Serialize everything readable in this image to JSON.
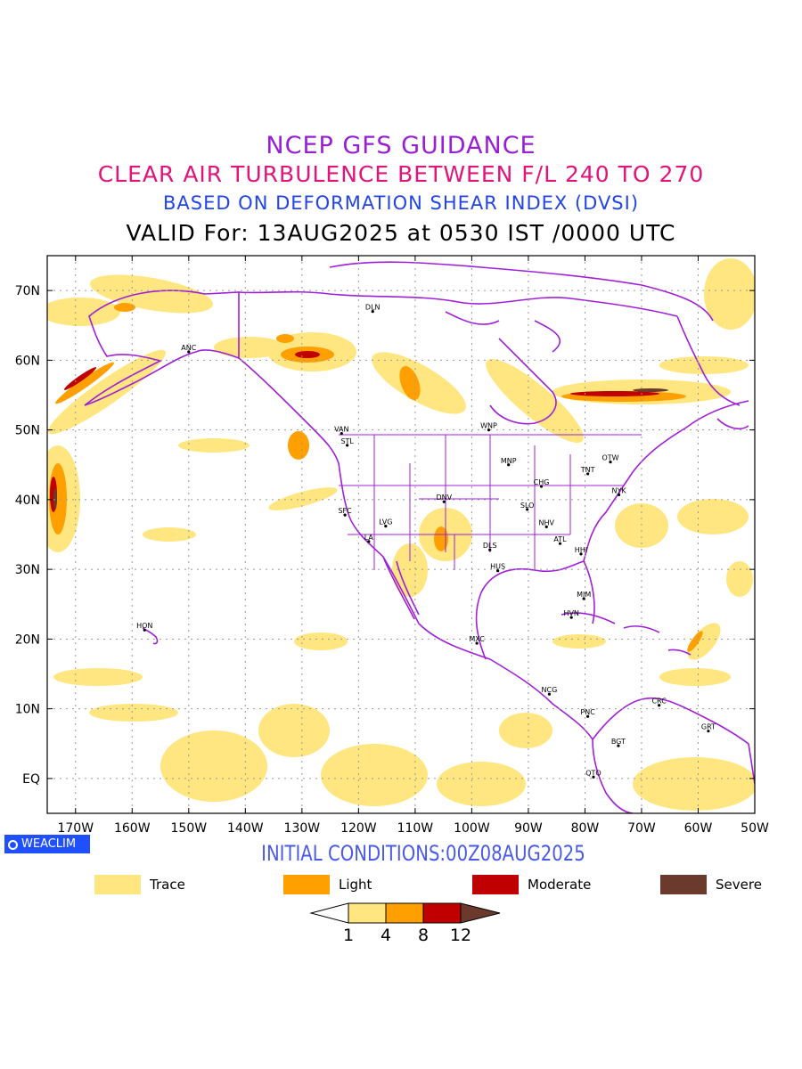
{
  "titles": {
    "line1": "NCEP GFS GUIDANCE",
    "line2": "CLEAR AIR TURBULENCE BETWEEN F/L 240 TO 270",
    "line3": "BASED ON DEFORMATION SHEAR INDEX (DVSI)",
    "line4": "VALID For: 13AUG2025 at 0530 IST /0000 UTC"
  },
  "map": {
    "lon_range": [
      -175,
      -50
    ],
    "lat_range": [
      -5,
      75
    ],
    "lat_ticks": [
      {
        "value": 70,
        "label": "70N"
      },
      {
        "value": 60,
        "label": "60N"
      },
      {
        "value": 50,
        "label": "50N"
      },
      {
        "value": 40,
        "label": "40N"
      },
      {
        "value": 30,
        "label": "30N"
      },
      {
        "value": 20,
        "label": "20N"
      },
      {
        "value": 10,
        "label": "10N"
      },
      {
        "value": 0,
        "label": "EQ"
      }
    ],
    "lon_ticks": [
      {
        "value": -170,
        "label": "170W"
      },
      {
        "value": -160,
        "label": "160W"
      },
      {
        "value": -150,
        "label": "150W"
      },
      {
        "value": -140,
        "label": "140W"
      },
      {
        "value": -130,
        "label": "130W"
      },
      {
        "value": -120,
        "label": "120W"
      },
      {
        "value": -110,
        "label": "110W"
      },
      {
        "value": -100,
        "label": "100W"
      },
      {
        "value": -90,
        "label": "90W"
      },
      {
        "value": -80,
        "label": "80W"
      },
      {
        "value": -70,
        "label": "70W"
      },
      {
        "value": -60,
        "label": "60W"
      },
      {
        "value": -50,
        "label": "50W"
      }
    ],
    "stations": [
      {
        "code": "DLN",
        "lon": -117.5,
        "lat": 67.0
      },
      {
        "code": "ANC",
        "lon": -150.0,
        "lat": 61.2
      },
      {
        "code": "VAN",
        "lon": -123.0,
        "lat": 49.5
      },
      {
        "code": "STL",
        "lon": -122.0,
        "lat": 47.8
      },
      {
        "code": "WNP",
        "lon": -97.0,
        "lat": 50.0
      },
      {
        "code": "MNP",
        "lon": -93.5,
        "lat": 45.0
      },
      {
        "code": "TNT",
        "lon": -79.5,
        "lat": 43.7
      },
      {
        "code": "OTW",
        "lon": -75.5,
        "lat": 45.4
      },
      {
        "code": "CHG",
        "lon": -87.7,
        "lat": 41.9
      },
      {
        "code": "NYK",
        "lon": -74.0,
        "lat": 40.7
      },
      {
        "code": "DNV",
        "lon": -104.9,
        "lat": 39.7
      },
      {
        "code": "SFC",
        "lon": -122.4,
        "lat": 37.8
      },
      {
        "code": "SLO",
        "lon": -90.2,
        "lat": 38.6
      },
      {
        "code": "LVG",
        "lon": -115.2,
        "lat": 36.2
      },
      {
        "code": "NHV",
        "lon": -86.8,
        "lat": 36.1
      },
      {
        "code": "LA",
        "lon": -118.2,
        "lat": 34.0
      },
      {
        "code": "DLS",
        "lon": -96.8,
        "lat": 32.8
      },
      {
        "code": "ATL",
        "lon": -84.4,
        "lat": 33.7
      },
      {
        "code": "HHI",
        "lon": -80.7,
        "lat": 32.2
      },
      {
        "code": "HUS",
        "lon": -95.4,
        "lat": 29.8
      },
      {
        "code": "MIM",
        "lon": -80.2,
        "lat": 25.8
      },
      {
        "code": "HVN",
        "lon": -82.4,
        "lat": 23.1
      },
      {
        "code": "HON",
        "lon": -157.8,
        "lat": 21.3
      },
      {
        "code": "MXC",
        "lon": -99.1,
        "lat": 19.4
      },
      {
        "code": "NCG",
        "lon": -86.3,
        "lat": 12.1
      },
      {
        "code": "CRC",
        "lon": -66.9,
        "lat": 10.5
      },
      {
        "code": "PNC",
        "lon": -79.5,
        "lat": 8.9
      },
      {
        "code": "GRT",
        "lon": -58.2,
        "lat": 6.8
      },
      {
        "code": "BGT",
        "lon": -74.1,
        "lat": 4.7
      },
      {
        "code": "QTO",
        "lon": -78.5,
        "lat": 0.2
      }
    ]
  },
  "badge": {
    "label": "WEACLIM"
  },
  "initial_conditions": "INITIAL CONDITIONS:00Z08AUG2025",
  "legend": [
    {
      "label": "Trace",
      "color": "#ffe680"
    },
    {
      "label": "Light",
      "color": "#ffa000"
    },
    {
      "label": "Moderate",
      "color": "#c00000"
    },
    {
      "label": "Severe",
      "color": "#6b3a2c"
    }
  ],
  "colorbar": {
    "levels": [
      "1",
      "4",
      "8",
      "12"
    ],
    "colors": [
      "#ffe680",
      "#ffa000",
      "#c00000",
      "#6b3a2c"
    ]
  },
  "colors": {
    "boundary": "#a020d8",
    "grid": "#999999"
  }
}
